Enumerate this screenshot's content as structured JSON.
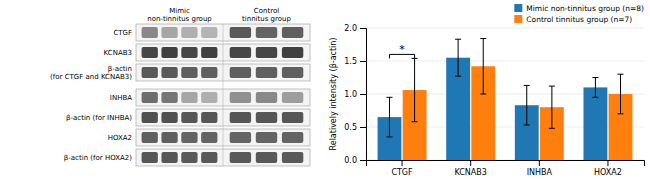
{
  "chart_data": [
    {
      "type": "gel",
      "categories": [
        "CTGF",
        "KCNAB3",
        "β-actin\n(for CTGF and KCNAB3)",
        "INHBA",
        "β-actin (for INHBA)",
        "HOXA2",
        "β-actin (for HOXA2)"
      ],
      "series": [
        {
          "name": "Mimic\nnon-tinnitus group",
          "values": [
            [
              0.55,
              0.45,
              0.42,
              0.4
            ],
            [
              0.78,
              0.8,
              0.78,
              0.8
            ],
            [
              0.72,
              0.72,
              0.7,
              0.7
            ],
            [
              0.65,
              0.62,
              0.45,
              0.42
            ],
            [
              0.75,
              0.75,
              0.73,
              0.73
            ],
            [
              0.7,
              0.7,
              0.68,
              0.68
            ],
            [
              0.73,
              0.73,
              0.72,
              0.72
            ]
          ]
        },
        {
          "name": "Control\ntinnitus group",
          "values": [
            [
              0.72,
              0.68,
              0.7
            ],
            [
              0.78,
              0.78,
              0.8
            ],
            [
              0.7,
              0.7,
              0.7
            ],
            [
              0.52,
              0.55,
              0.48
            ],
            [
              0.73,
              0.73,
              0.73
            ],
            [
              0.68,
              0.68,
              0.68
            ],
            [
              0.72,
              0.72,
              0.72
            ]
          ]
        }
      ]
    },
    {
      "type": "bar",
      "categories": [
        "CTGF",
        "KCNAB3",
        "INHBA",
        "HOXA2"
      ],
      "series": [
        {
          "name": "Mimic non-tinnitus group (n=8)",
          "values": [
            0.65,
            1.55,
            0.83,
            1.1
          ],
          "errors": [
            0.3,
            0.28,
            0.3,
            0.15
          ]
        },
        {
          "name": "Control tinnitus group (n=7)",
          "values": [
            1.06,
            1.42,
            0.8,
            1.0
          ],
          "errors": [
            0.48,
            0.42,
            0.32,
            0.3
          ]
        }
      ],
      "ylabel": "Relatively intensity (β-actin)",
      "ylim": [
        0.0,
        2.0
      ],
      "yticks": [
        {
          "value": 0,
          "label": "0.0"
        },
        0.5,
        {
          "value": 1,
          "label": "1.0"
        },
        1.5,
        {
          "value": 2,
          "label": "2.0"
        }
      ],
      "grid": true,
      "legend": "upper right",
      "annotations": [
        {
          "text": "*",
          "category": "CTGF",
          "y": 1.6
        }
      ]
    }
  ]
}
